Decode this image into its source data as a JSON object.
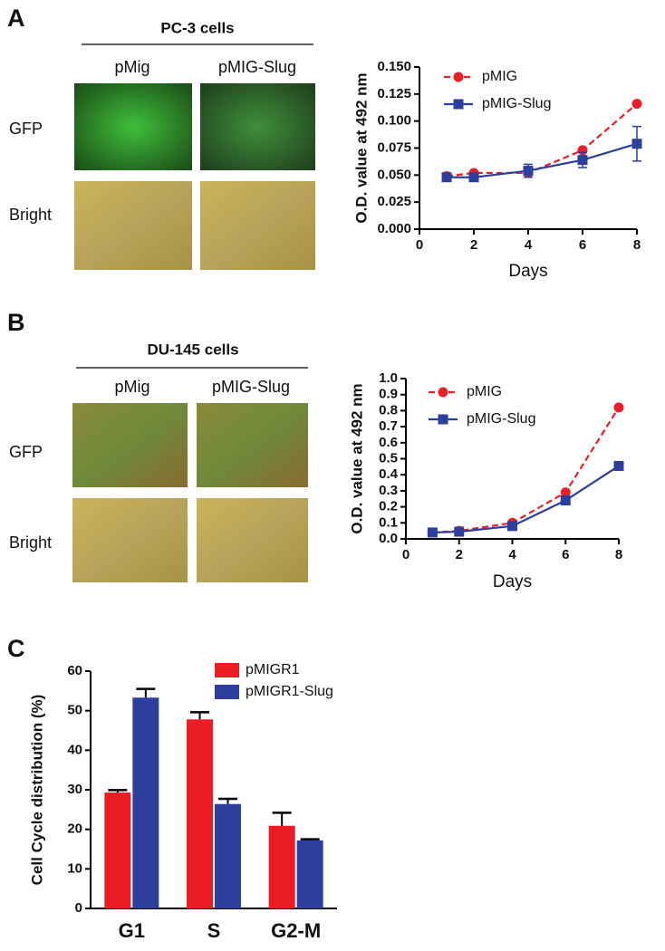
{
  "figure": {
    "panels": [
      {
        "label": "A",
        "title": "PC-3 cells",
        "columns": [
          "pMig",
          "pMIG-Slug"
        ],
        "rows": [
          "GFP",
          "Bright"
        ]
      },
      {
        "label": "B",
        "title": "DU-145 cells",
        "columns": [
          "pMig",
          "pMIG-Slug"
        ],
        "rows": [
          "GFP",
          "Bright"
        ]
      },
      {
        "label": "C"
      }
    ]
  },
  "chart_data": [
    {
      "type": "line",
      "y_label": "O.D. value at 492 nm",
      "x_label": "Days",
      "x": [
        1,
        2,
        4,
        6,
        8
      ],
      "series": [
        {
          "name": "pMIG",
          "color": "#e8202a",
          "linestyle": "dashed",
          "marker": "circle",
          "values": [
            0.049,
            0.052,
            0.052,
            0.073,
            0.116
          ]
        },
        {
          "name": "pMIG-Slug",
          "color": "#2e3e9c",
          "linestyle": "solid",
          "marker": "square",
          "values": [
            0.048,
            0.048,
            0.054,
            0.064,
            0.079
          ],
          "errors": [
            0.002,
            0.002,
            0.006,
            0.007,
            0.016
          ]
        }
      ],
      "xlim": [
        0,
        8
      ],
      "xticks": [
        0,
        2,
        4,
        6,
        8
      ],
      "ylim": [
        0,
        0.15
      ],
      "yticks": [
        {
          "value": 0,
          "label": "0.000"
        },
        {
          "value": 0.025,
          "label": "0.025"
        },
        {
          "value": 0.05,
          "label": "0.050"
        },
        {
          "value": 0.075,
          "label": "0.075"
        },
        {
          "value": 0.1,
          "label": "0.100"
        },
        {
          "value": 0.125,
          "label": "0.125"
        },
        {
          "value": 0.15,
          "label": "0.150"
        }
      ],
      "legend": "upper left"
    },
    {
      "type": "line",
      "y_label": "O.D. value at 492 nm",
      "x_label": "Days",
      "x": [
        1,
        2,
        4,
        6,
        8
      ],
      "series": [
        {
          "name": "pMIG",
          "color": "#e8202a",
          "linestyle": "dashed",
          "marker": "circle",
          "values": [
            0.04,
            0.05,
            0.1,
            0.29,
            0.82
          ]
        },
        {
          "name": "pMIG-Slug",
          "color": "#2e3e9c",
          "linestyle": "solid",
          "marker": "square",
          "values": [
            0.04,
            0.045,
            0.08,
            0.24,
            0.455
          ]
        }
      ],
      "xlim": [
        0,
        8
      ],
      "xticks": [
        0,
        2,
        4,
        6,
        8
      ],
      "ylim": [
        0,
        1
      ],
      "yticks": [
        {
          "value": 0,
          "label": "0.0"
        },
        0.1,
        0.2,
        0.3,
        0.4,
        0.5,
        0.6,
        0.7,
        0.8,
        0.9,
        {
          "value": 1,
          "label": "1.0"
        }
      ],
      "legend": "upper left"
    },
    {
      "type": "bar",
      "y_label": "Cell Cycle distribution (%)",
      "categories": [
        "G1",
        "S",
        "G2-M"
      ],
      "series": [
        {
          "name": "pMIGR1",
          "color": "#ec1c24",
          "values": [
            29.3,
            47.8,
            20.9
          ],
          "errors": [
            0.6,
            1.8,
            3.3
          ]
        },
        {
          "name": "pMIGR1-Slug",
          "color": "#2e3e9c",
          "values": [
            53.3,
            26.4,
            17.2
          ],
          "errors": [
            2.2,
            1.3,
            0.3
          ]
        }
      ],
      "ylim": [
        0,
        60
      ],
      "yticks": [
        0,
        10,
        20,
        30,
        40,
        50,
        60
      ],
      "legend": "upper right"
    }
  ]
}
